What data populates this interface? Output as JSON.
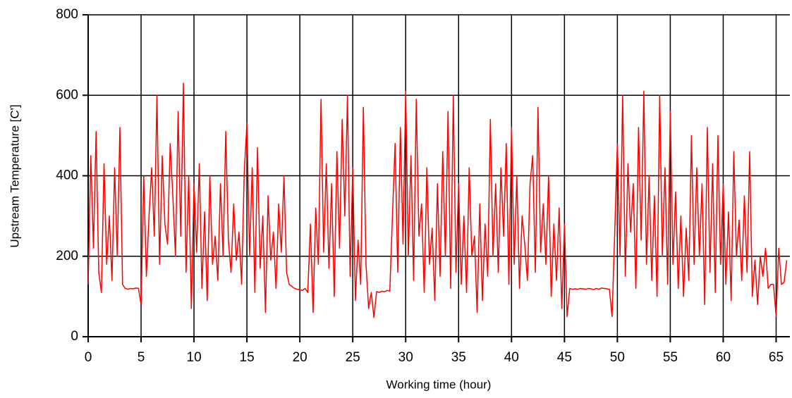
{
  "chart_data": {
    "type": "line",
    "xlabel": "Working time (hour)",
    "ylabel": "Upstream Temperature [C']",
    "color": "#ff0000",
    "grid": true,
    "xlim": [
      0,
      66.3
    ],
    "ylim": [
      0,
      800
    ],
    "xticks": [
      0,
      5,
      10,
      15,
      20,
      25,
      30,
      35,
      40,
      45,
      50,
      55,
      60,
      65
    ],
    "yticks": [
      0,
      200,
      400,
      600,
      800
    ],
    "x": [
      0,
      0.25,
      0.5,
      0.75,
      1,
      1.25,
      1.5,
      1.75,
      2,
      2.25,
      2.5,
      2.75,
      3,
      3.25,
      3.5,
      3.75,
      4,
      4.25,
      4.5,
      4.75,
      5,
      5.25,
      5.5,
      5.75,
      6,
      6.25,
      6.5,
      6.75,
      7,
      7.25,
      7.5,
      7.75,
      8,
      8.25,
      8.5,
      8.75,
      9,
      9.25,
      9.5,
      9.75,
      10,
      10.25,
      10.5,
      10.75,
      11,
      11.25,
      11.5,
      11.75,
      12,
      12.25,
      12.5,
      12.75,
      13,
      13.25,
      13.5,
      13.75,
      14,
      14.25,
      14.5,
      14.75,
      15,
      15.25,
      15.5,
      15.75,
      16,
      16.25,
      16.5,
      16.75,
      17,
      17.25,
      17.5,
      17.75,
      18,
      18.25,
      18.5,
      18.75,
      19,
      19.25,
      19.5,
      19.75,
      20,
      20.25,
      20.5,
      20.75,
      21,
      21.25,
      21.5,
      21.75,
      22,
      22.25,
      22.5,
      22.75,
      23,
      23.25,
      23.5,
      23.75,
      24,
      24.25,
      24.5,
      24.75,
      25,
      25.25,
      25.5,
      25.75,
      26,
      26.25,
      26.5,
      26.75,
      27,
      27.25,
      27.5,
      27.75,
      28,
      28.25,
      28.5,
      28.75,
      29,
      29.25,
      29.5,
      29.75,
      30,
      30.25,
      30.5,
      30.75,
      31,
      31.25,
      31.5,
      31.75,
      32,
      32.25,
      32.5,
      32.75,
      33,
      33.25,
      33.5,
      33.75,
      34,
      34.25,
      34.5,
      34.75,
      35,
      35.25,
      35.5,
      35.75,
      36,
      36.25,
      36.5,
      36.75,
      37,
      37.25,
      37.5,
      37.75,
      38,
      38.25,
      38.5,
      38.75,
      39,
      39.25,
      39.5,
      39.75,
      40,
      40.25,
      40.5,
      40.75,
      41,
      41.25,
      41.5,
      41.75,
      42,
      42.25,
      42.5,
      42.75,
      43,
      43.25,
      43.5,
      43.75,
      44,
      44.25,
      44.5,
      44.75,
      45,
      45.25,
      45.5,
      45.75,
      46,
      46.25,
      46.5,
      46.75,
      47,
      47.25,
      47.5,
      47.75,
      48,
      48.25,
      48.5,
      48.75,
      49,
      49.25,
      49.5,
      49.75,
      50,
      50.25,
      50.5,
      50.75,
      51,
      51.25,
      51.5,
      51.75,
      52,
      52.25,
      52.5,
      52.75,
      53,
      53.25,
      53.5,
      53.75,
      54,
      54.25,
      54.5,
      54.75,
      55,
      55.25,
      55.5,
      55.75,
      56,
      56.25,
      56.5,
      56.75,
      57,
      57.25,
      57.5,
      57.75,
      58,
      58.25,
      58.5,
      58.75,
      59,
      59.25,
      59.5,
      59.75,
      60,
      60.25,
      60.5,
      60.75,
      61,
      61.25,
      61.5,
      61.75,
      62,
      62.25,
      62.5,
      62.75,
      63,
      63.25,
      63.5,
      63.75,
      64,
      64.25,
      64.5,
      64.75,
      65,
      65.25,
      65.5,
      65.75,
      66
    ],
    "values": [
      130,
      450,
      220,
      510,
      160,
      110,
      430,
      180,
      300,
      140,
      420,
      200,
      520,
      130,
      120,
      118,
      120,
      119,
      121,
      120,
      80,
      400,
      150,
      300,
      420,
      250,
      600,
      180,
      450,
      280,
      230,
      480,
      350,
      200,
      560,
      250,
      630,
      160,
      400,
      70,
      380,
      210,
      430,
      120,
      310,
      90,
      400,
      180,
      250,
      140,
      380,
      200,
      510,
      240,
      160,
      330,
      190,
      260,
      130,
      410,
      530,
      200,
      420,
      110,
      470,
      170,
      300,
      60,
      350,
      190,
      260,
      120,
      330,
      210,
      400,
      160,
      130,
      125,
      120,
      118,
      117,
      115,
      120,
      110,
      280,
      60,
      320,
      180,
      590,
      210,
      430,
      170,
      380,
      100,
      460,
      220,
      540,
      300,
      600,
      150,
      420,
      90,
      240,
      130,
      570,
      180,
      70,
      110,
      48,
      112,
      110,
      113,
      112,
      115,
      113,
      300,
      480,
      160,
      520,
      230,
      610,
      200,
      450,
      140,
      590,
      250,
      330,
      110,
      420,
      180,
      270,
      90,
      380,
      150,
      460,
      200,
      560,
      120,
      600,
      160,
      380,
      130,
      300,
      110,
      420,
      200,
      250,
      60,
      330,
      90,
      280,
      150,
      540,
      200,
      380,
      160,
      420,
      250,
      480,
      130,
      520,
      180,
      400,
      120,
      300,
      230,
      140,
      380,
      450,
      160,
      570,
      210,
      330,
      180,
      400,
      100,
      280,
      140,
      320,
      70,
      280,
      50,
      120,
      118,
      119,
      118,
      120,
      119,
      118,
      120,
      119,
      117,
      120,
      118,
      121,
      120,
      119,
      118,
      50,
      260,
      480,
      200,
      600,
      150,
      430,
      260,
      380,
      120,
      520,
      240,
      610,
      180,
      400,
      140,
      350,
      100,
      600,
      200,
      420,
      130,
      560,
      180,
      360,
      120,
      300,
      100,
      270,
      140,
      500,
      180,
      420,
      200,
      380,
      80,
      520,
      160,
      430,
      110,
      500,
      180,
      380,
      130,
      310,
      90,
      460,
      200,
      290,
      140,
      350,
      160,
      460,
      100,
      190,
      80,
      200,
      150,
      220,
      120,
      130,
      130,
      50,
      220,
      130,
      135,
      190
    ]
  }
}
